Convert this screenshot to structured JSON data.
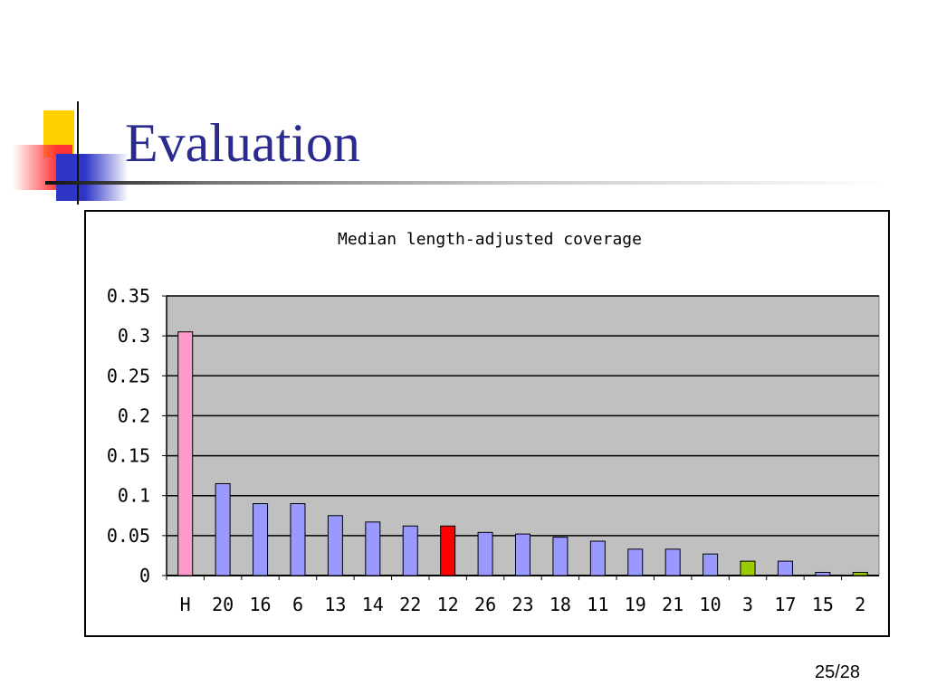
{
  "slide": {
    "title": "Evaluation",
    "page_number": "25/28"
  },
  "colors": {
    "title": "#2b2b8f",
    "plot_background": "#c0c0c0",
    "bar_default": "#9999ff",
    "bar_highlight_pink": "#ff99cc",
    "bar_highlight_red": "#ff0000",
    "bar_highlight_green": "#99cc00"
  },
  "chart_data": {
    "type": "bar",
    "title": "Median length-adjusted coverage",
    "xlabel": "",
    "ylabel": "",
    "ylim": [
      0,
      0.35
    ],
    "yticks": [
      "0",
      "0.05",
      "0.1",
      "0.15",
      "0.2",
      "0.25",
      "0.3",
      "0.35"
    ],
    "grid": true,
    "legend": "none",
    "categories": [
      "H",
      "20",
      "16",
      "6",
      "13",
      "14",
      "22",
      "12",
      "26",
      "23",
      "18",
      "11",
      "19",
      "21",
      "10",
      "3",
      "17",
      "15",
      "2"
    ],
    "values": [
      0.305,
      0.115,
      0.09,
      0.09,
      0.075,
      0.067,
      0.062,
      0.062,
      0.054,
      0.052,
      0.048,
      0.043,
      0.033,
      0.033,
      0.027,
      0.018,
      0.018,
      0.004,
      0.004
    ],
    "bar_colors": [
      "#ff99cc",
      "#9999ff",
      "#9999ff",
      "#9999ff",
      "#9999ff",
      "#9999ff",
      "#9999ff",
      "#ff0000",
      "#9999ff",
      "#9999ff",
      "#9999ff",
      "#9999ff",
      "#9999ff",
      "#9999ff",
      "#9999ff",
      "#99cc00",
      "#9999ff",
      "#9999ff",
      "#99cc00"
    ]
  }
}
